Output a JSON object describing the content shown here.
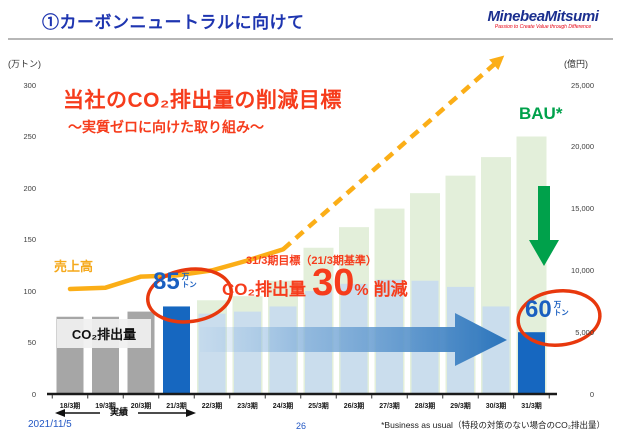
{
  "header": {
    "title": "①カーボンニュートラルに向けて",
    "logo": {
      "name": "MinebeaMitsumi",
      "tagline": "Passion to Create Value through Difference"
    }
  },
  "chart_data": {
    "type": "bar",
    "title": "当社のCO₂排出量の削減目標",
    "subtitle": "～実質ゼロに向けた取り組み～",
    "left_axis": {
      "label": "(万トン)",
      "ticks": [
        300,
        250,
        200,
        150,
        100,
        50,
        0
      ],
      "max": 300
    },
    "right_axis": {
      "label": "(億円)",
      "ticks": [
        "25,000",
        "20,000",
        "15,000",
        "10,000",
        "5,000",
        "0"
      ],
      "max": 25000
    },
    "categories": [
      "18/3期",
      "19/3期",
      "20/3期",
      "21/3期",
      "22/3期",
      "23/3期",
      "24/3期",
      "25/3期",
      "26/3期",
      "27/3期",
      "28/3期",
      "29/3期",
      "30/3期",
      "31/3期"
    ],
    "series": [
      {
        "name": "CO₂排出量",
        "axis": "left",
        "unit": "万トン",
        "values": [
          75,
          75,
          80,
          85,
          78,
          80,
          85,
          100,
          107,
          111,
          110,
          104,
          85,
          60
        ],
        "styles": [
          "actual",
          "actual",
          "actual",
          "highlight",
          "plan",
          "plan",
          "plan",
          "plan",
          "plan",
          "plan",
          "plan",
          "plan",
          "plan",
          "highlight"
        ]
      },
      {
        "name": "BAU（特段の対策のない場合のCO₂排出量）",
        "axis": "left",
        "unit": "万トン",
        "style": "bau",
        "values": [
          null,
          null,
          null,
          null,
          91,
          95,
          110,
          142,
          162,
          180,
          195,
          212,
          230,
          250
        ]
      },
      {
        "name": "売上高",
        "type": "line",
        "axis": "right",
        "unit": "億円",
        "solid_values": [
          8500,
          8600,
          9500,
          9600,
          10000,
          10800,
          11700
        ],
        "projection": {
          "end_index": 12,
          "end_value": 26800
        }
      }
    ],
    "colors": {
      "actual": "#a6a6a6",
      "highlight": "#1667c0",
      "plan": "#cadded",
      "bau": "#e3efda",
      "sales_line": "#fbae17",
      "arrow_blue": "#2f77bd",
      "arrow_green": "#00a14b",
      "accent_red": "#f63c1c",
      "circle_red": "#e8380d",
      "value_blue": "#1a5fc0"
    },
    "actual_range": {
      "label": "実績",
      "from": "18/3期",
      "to": "21/3期"
    }
  },
  "annotations": {
    "sales_label": "売上高",
    "co2_bar_label": "CO₂排出量",
    "bau_label": "BAU*",
    "point_85": {
      "value": "85",
      "unit_top": "万",
      "unit_bottom": "トン"
    },
    "point_60": {
      "value": "60",
      "unit_top": "万",
      "unit_bottom": "トン"
    },
    "target_heading": "31/3期目標（21/3期基準）",
    "target": {
      "co2": "CO₂排出量",
      "number": "30",
      "percent": "%",
      "suffix": "削減"
    }
  },
  "footer": {
    "date": "2021/11/5",
    "page": "26",
    "footnote": "*Business as usual（特段の対策のない場合のCO₂排出量）"
  }
}
